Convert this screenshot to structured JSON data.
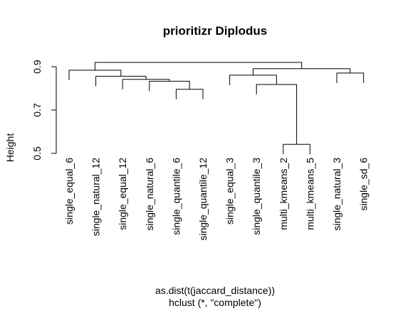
{
  "chart_data": {
    "type": "dendrogram",
    "title": "prioritizr Diplodus",
    "ylabel": "Height",
    "xlabel": "as.dist(t(jaccard_distance))",
    "sub": "hclust (*, \"complete\")",
    "yticks": [
      0.5,
      0.7,
      0.9
    ],
    "ytick_labels": [
      "0.5",
      "0.7",
      "0.9"
    ],
    "ylim": [
      0.5,
      0.96
    ],
    "leaves": [
      "single_equal_6",
      "single_natural_12",
      "single_equal_12",
      "single_natural_6",
      "single_quantile_6",
      "single_quantile_12",
      "single_equal_3",
      "single_quantile_3",
      "multi_kmeans_2",
      "multi_kmeans_5",
      "single_natural_3",
      "single_sd_6"
    ],
    "merges": [
      {
        "id": 1,
        "left": 5,
        "right": 6,
        "height": 0.796
      },
      {
        "id": 2,
        "left": 4,
        "right": "n1",
        "height": 0.833
      },
      {
        "id": 3,
        "left": 3,
        "right": "n2",
        "height": 0.842
      },
      {
        "id": 4,
        "left": 2,
        "right": "n3",
        "height": 0.856
      },
      {
        "id": 5,
        "left": 9,
        "right": 10,
        "height": 0.542
      },
      {
        "id": 6,
        "left": 8,
        "right": "n5",
        "height": 0.818
      },
      {
        "id": 7,
        "left": 11,
        "right": 12,
        "height": 0.871
      },
      {
        "id": 8,
        "left": 7,
        "right": "n6",
        "height": 0.861
      },
      {
        "id": 9,
        "left": 1,
        "right": "n4",
        "height": 0.884
      },
      {
        "id": 10,
        "left": "n8",
        "right": "n7",
        "height": 0.891
      },
      {
        "id": 11,
        "left": "n9",
        "right": "n10",
        "height": 0.92
      }
    ]
  }
}
